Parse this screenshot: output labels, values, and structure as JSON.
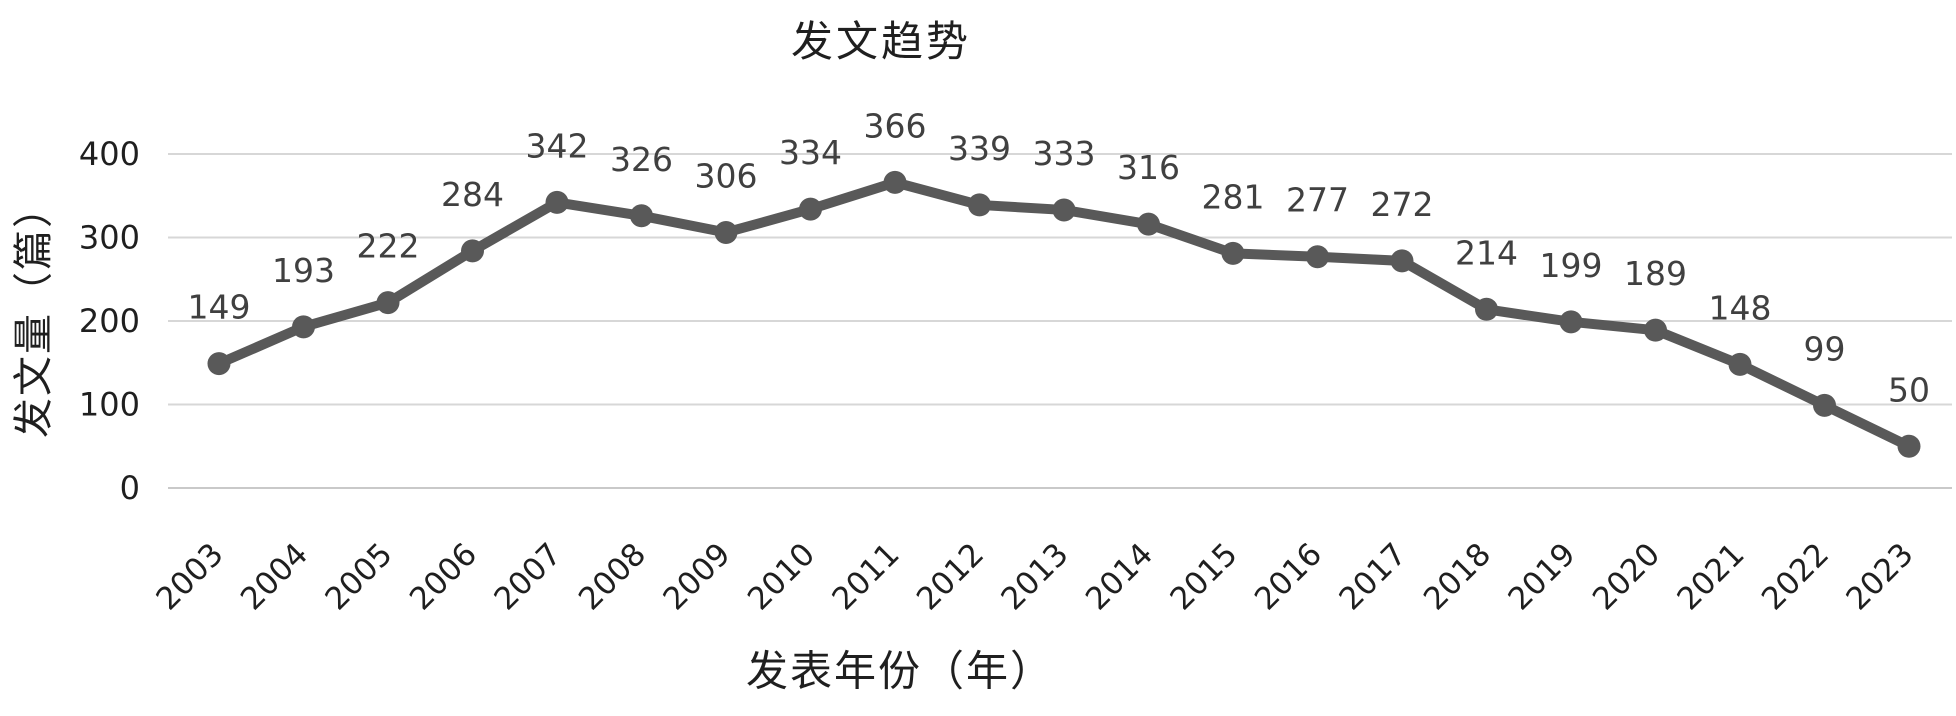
{
  "chart": {
    "title": "发文趋势",
    "x_axis_title": "发表年份（年）",
    "y_axis_title": "发文量（篇）"
  },
  "chart_data": {
    "type": "line",
    "title": "发文趋势",
    "xlabel": "发表年份（年）",
    "ylabel": "发文量（篇）",
    "categories": [
      "2003",
      "2004",
      "2005",
      "2006",
      "2007",
      "2008",
      "2009",
      "2010",
      "2011",
      "2012",
      "2013",
      "2014",
      "2015",
      "2016",
      "2017",
      "2018",
      "2019",
      "2020",
      "2021",
      "2022",
      "2023"
    ],
    "values": [
      149,
      193,
      222,
      284,
      342,
      326,
      306,
      334,
      366,
      339,
      333,
      316,
      281,
      277,
      272,
      214,
      199,
      189,
      148,
      99,
      50
    ],
    "ylim": [
      0,
      400
    ],
    "y_ticks": [
      0,
      100,
      200,
      300,
      400
    ],
    "grid": true,
    "legend": "none",
    "data_labels": "above",
    "colors": {
      "line": "#595959",
      "marker": "#595959",
      "gridline": "#d7d7d7",
      "baseline": "#c9c9c9",
      "tick_text": "#1f1f1f",
      "data_label_text": "#404040"
    }
  }
}
